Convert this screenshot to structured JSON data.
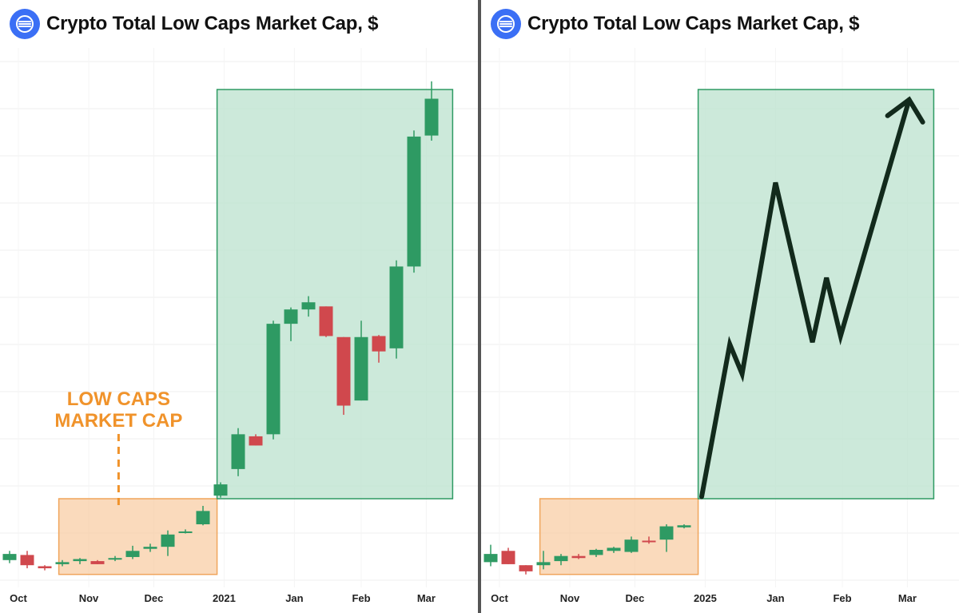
{
  "colors": {
    "up": "#2e9a63",
    "down": "#d0484d",
    "range_fill": "#f8caa0",
    "range_border": "#f0a55c",
    "target_fill": "#bfe4d1",
    "target_border": "#2e9a63",
    "annotation": "#f0932b",
    "trend_line": "#122a1c",
    "logo": "#3b6ff5"
  },
  "logo_icon": "signal-waves-icon",
  "panels": [
    {
      "title": "Crypto Total Low Caps Market Cap, $",
      "annotation": [
        "LOW CAPS",
        "MARKET CAP"
      ]
    },
    {
      "title": "Crypto Total Low Caps Market Cap, $"
    }
  ],
  "chart_data": [
    {
      "type": "candlestick",
      "title": "Crypto Total Low Caps Market Cap, $",
      "x_tick_labels": [
        "Oct",
        "Nov",
        "Dec",
        "2021",
        "Jan",
        "Feb",
        "Mar"
      ],
      "x_tick_positions": [
        0.5,
        4.5,
        8.2,
        12.2,
        16.2,
        20.0,
        23.7
      ],
      "y_axis_labels": "none shown",
      "grid": true,
      "candles": [
        {
          "x": 0.0,
          "o": 15,
          "h": 24,
          "l": 12,
          "c": 21
        },
        {
          "x": 1.0,
          "o": 20,
          "h": 24,
          "l": 7,
          "c": 10
        },
        {
          "x": 2.0,
          "o": 9,
          "h": 10,
          "l": 5,
          "c": 7
        },
        {
          "x": 3.0,
          "o": 11,
          "h": 15,
          "l": 9,
          "c": 13
        },
        {
          "x": 4.0,
          "o": 14,
          "h": 17,
          "l": 11,
          "c": 16
        },
        {
          "x": 5.0,
          "o": 14,
          "h": 15,
          "l": 11,
          "c": 11
        },
        {
          "x": 6.0,
          "o": 16,
          "h": 19,
          "l": 14,
          "c": 17
        },
        {
          "x": 7.0,
          "o": 18,
          "h": 29,
          "l": 16,
          "c": 24
        },
        {
          "x": 8.0,
          "o": 26,
          "h": 31,
          "l": 23,
          "c": 28
        },
        {
          "x": 9.0,
          "o": 28,
          "h": 44,
          "l": 19,
          "c": 40
        },
        {
          "x": 10.0,
          "o": 42,
          "h": 45,
          "l": 41,
          "c": 43
        },
        {
          "x": 11.0,
          "o": 50,
          "h": 68,
          "l": 49,
          "c": 63
        },
        {
          "x": 12.0,
          "o": 78,
          "h": 91,
          "l": 76,
          "c": 89
        },
        {
          "x": 13.0,
          "o": 104,
          "h": 144,
          "l": 97,
          "c": 138
        },
        {
          "x": 14.0,
          "o": 136,
          "h": 138,
          "l": 127,
          "c": 127
        },
        {
          "x": 15.0,
          "o": 138,
          "h": 249,
          "l": 133,
          "c": 246
        },
        {
          "x": 16.0,
          "o": 246,
          "h": 262,
          "l": 229,
          "c": 260
        },
        {
          "x": 17.0,
          "o": 260,
          "h": 273,
          "l": 253,
          "c": 267
        },
        {
          "x": 18.0,
          "o": 263,
          "h": 263,
          "l": 233,
          "c": 234
        },
        {
          "x": 19.0,
          "o": 233,
          "h": 233,
          "l": 157,
          "c": 166
        },
        {
          "x": 20.0,
          "o": 171,
          "h": 249,
          "l": 171,
          "c": 233
        },
        {
          "x": 21.0,
          "o": 234,
          "h": 235,
          "l": 208,
          "c": 219
        },
        {
          "x": 22.0,
          "o": 222,
          "h": 308,
          "l": 212,
          "c": 302
        },
        {
          "x": 23.0,
          "o": 302,
          "h": 435,
          "l": 296,
          "c": 429
        },
        {
          "x": 24.0,
          "o": 430,
          "h": 483,
          "l": 425,
          "c": 466
        }
      ],
      "range_box": {
        "x_from": 2.8,
        "x_to": 11.8,
        "y_from": 1,
        "y_to": 75
      },
      "target_box": {
        "x_from": 11.8,
        "x_to": 25.2,
        "y_from": 75,
        "y_to": 475
      }
    },
    {
      "type": "candlestick",
      "title": "Crypto Total Low Caps Market Cap, $",
      "x_tick_labels": [
        "Oct",
        "Nov",
        "Dec",
        "2025",
        "Jan",
        "Feb",
        "Mar"
      ],
      "x_tick_positions": [
        0.5,
        4.5,
        8.2,
        12.2,
        16.2,
        20.0,
        23.7
      ],
      "y_axis_labels": "none shown",
      "grid": true,
      "candles": [
        {
          "x": 0.0,
          "o": 13,
          "h": 30,
          "l": 9,
          "c": 21
        },
        {
          "x": 1.0,
          "o": 24,
          "h": 27,
          "l": 11,
          "c": 11
        },
        {
          "x": 2.0,
          "o": 10,
          "h": 10,
          "l": 1,
          "c": 4
        },
        {
          "x": 3.0,
          "o": 10,
          "h": 24,
          "l": 6,
          "c": 13
        },
        {
          "x": 4.0,
          "o": 14,
          "h": 21,
          "l": 10,
          "c": 19
        },
        {
          "x": 5.0,
          "o": 19,
          "h": 21,
          "l": 16,
          "c": 17
        },
        {
          "x": 6.0,
          "o": 20,
          "h": 26,
          "l": 18,
          "c": 25
        },
        {
          "x": 7.0,
          "o": 24,
          "h": 28,
          "l": 22,
          "c": 27
        },
        {
          "x": 8.0,
          "o": 23,
          "h": 38,
          "l": 22,
          "c": 35
        },
        {
          "x": 9.0,
          "o": 34,
          "h": 38,
          "l": 31,
          "c": 33
        },
        {
          "x": 10.0,
          "o": 35,
          "h": 50,
          "l": 23,
          "c": 48
        },
        {
          "x": 11.0,
          "o": 47,
          "h": 50,
          "l": 46,
          "c": 49
        }
      ],
      "range_box": {
        "x_from": 2.8,
        "x_to": 11.8,
        "y_from": 1,
        "y_to": 75
      },
      "target_box": {
        "x_from": 11.8,
        "x_to": 25.2,
        "y_from": 75,
        "y_to": 475
      },
      "projection_line": [
        {
          "x": 12.0,
          "y": 77
        },
        {
          "x": 13.6,
          "y": 226
        },
        {
          "x": 14.3,
          "y": 197
        },
        {
          "x": 16.2,
          "y": 384
        },
        {
          "x": 18.3,
          "y": 228
        },
        {
          "x": 19.1,
          "y": 291
        },
        {
          "x": 19.9,
          "y": 234
        },
        {
          "x": 23.8,
          "y": 465
        }
      ],
      "arrowhead": true
    }
  ]
}
